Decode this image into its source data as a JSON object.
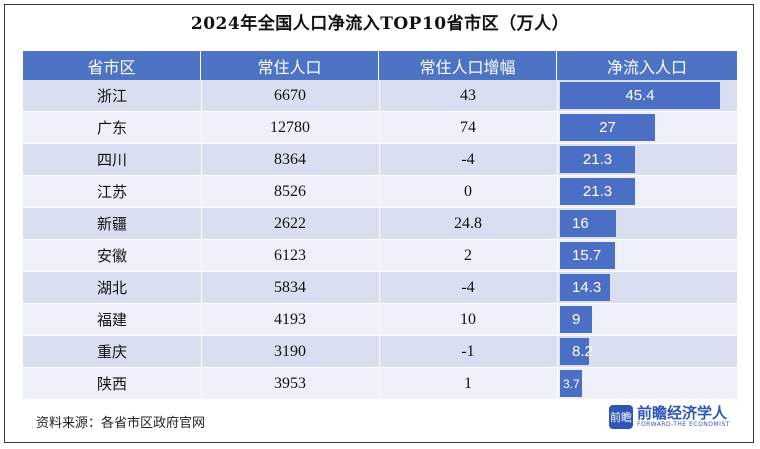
{
  "title": "2024年全国人口净流入TOP10省市区（万人）",
  "headers": [
    "省市区",
    "常住人口",
    "常住人口增幅",
    "净流入人口"
  ],
  "rows": [
    {
      "name": "浙江",
      "pop": "6670",
      "growth": "43",
      "net": "45.4"
    },
    {
      "name": "广东",
      "pop": "12780",
      "growth": "74",
      "net": "27"
    },
    {
      "name": "四川",
      "pop": "8364",
      "growth": "-4",
      "net": "21.3"
    },
    {
      "name": "江苏",
      "pop": "8526",
      "growth": "0",
      "net": "21.3"
    },
    {
      "name": "新疆",
      "pop": "2622",
      "growth": "24.8",
      "net": "16"
    },
    {
      "name": "安徽",
      "pop": "6123",
      "growth": "2",
      "net": "15.7"
    },
    {
      "name": "湖北",
      "pop": "5834",
      "growth": "-4",
      "net": "14.3"
    },
    {
      "name": "福建",
      "pop": "4193",
      "growth": "10",
      "net": "9"
    },
    {
      "name": "重庆",
      "pop": "3190",
      "growth": "-1",
      "net": "8.2"
    },
    {
      "name": "陕西",
      "pop": "3953",
      "growth": "1",
      "net": "3.7"
    }
  ],
  "chart_data": {
    "type": "table",
    "title": "2024年全国人口净流入TOP10省市区（万人）",
    "columns": [
      "省市区",
      "常住人口",
      "常住人口增幅",
      "净流入人口"
    ],
    "categories": [
      "浙江",
      "广东",
      "四川",
      "江苏",
      "新疆",
      "安徽",
      "湖北",
      "福建",
      "重庆",
      "陕西"
    ],
    "series": [
      {
        "name": "常住人口",
        "values": [
          6670,
          12780,
          8364,
          8526,
          2622,
          6123,
          5834,
          4193,
          3190,
          3953
        ]
      },
      {
        "name": "常住人口增幅",
        "values": [
          43,
          74,
          -4,
          0,
          24.8,
          2,
          -4,
          10,
          -1,
          1
        ]
      },
      {
        "name": "净流入人口",
        "values": [
          45.4,
          27,
          21.3,
          21.3,
          16,
          15.7,
          14.3,
          9,
          8.2,
          3.7
        ]
      }
    ],
    "bar_column": "净流入人口",
    "bar_color": "#4b6fc5"
  },
  "source": "资料来源：各省市区政府官网",
  "brand": {
    "icon": "前瞻",
    "name": "前瞻经济学人",
    "sub": "FORWARD-THE ECONOMIST"
  }
}
